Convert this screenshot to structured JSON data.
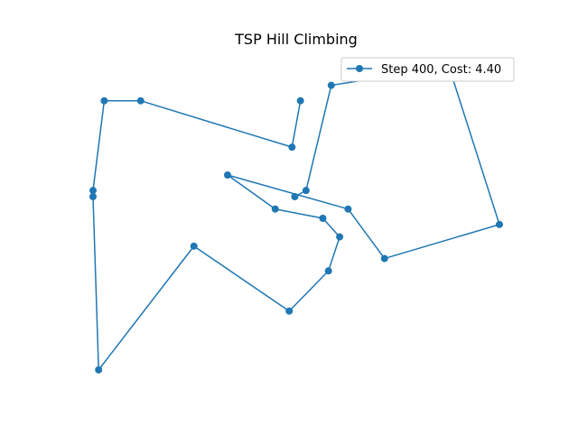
{
  "chart_data": {
    "type": "line",
    "title": "TSP Hill Climbing",
    "xlabel": "",
    "ylabel": "",
    "axes_visible": false,
    "grid": false,
    "legend_position": "top-right",
    "marker": "circle",
    "color": "#1f77b4",
    "series": [
      {
        "name": "Step 400, Cost: 4.40",
        "points": [
          [
            0.72,
            0.56
          ],
          [
            0.76,
            0.58
          ],
          [
            0.85,
            0.92
          ],
          [
            1.27,
            0.98
          ],
          [
            1.45,
            0.47
          ],
          [
            1.04,
            0.36
          ],
          [
            0.91,
            0.52
          ],
          [
            0.48,
            0.63
          ],
          [
            0.65,
            0.52
          ],
          [
            0.82,
            0.49
          ],
          [
            0.88,
            0.43
          ],
          [
            0.84,
            0.32
          ],
          [
            0.7,
            0.19
          ],
          [
            0.36,
            0.4
          ],
          [
            0.02,
            0.0
          ],
          [
            0.0,
            0.56
          ],
          [
            0.0,
            0.58
          ],
          [
            0.04,
            0.87
          ],
          [
            0.17,
            0.87
          ],
          [
            0.71,
            0.72
          ],
          [
            0.74,
            0.87
          ]
        ]
      }
    ]
  }
}
